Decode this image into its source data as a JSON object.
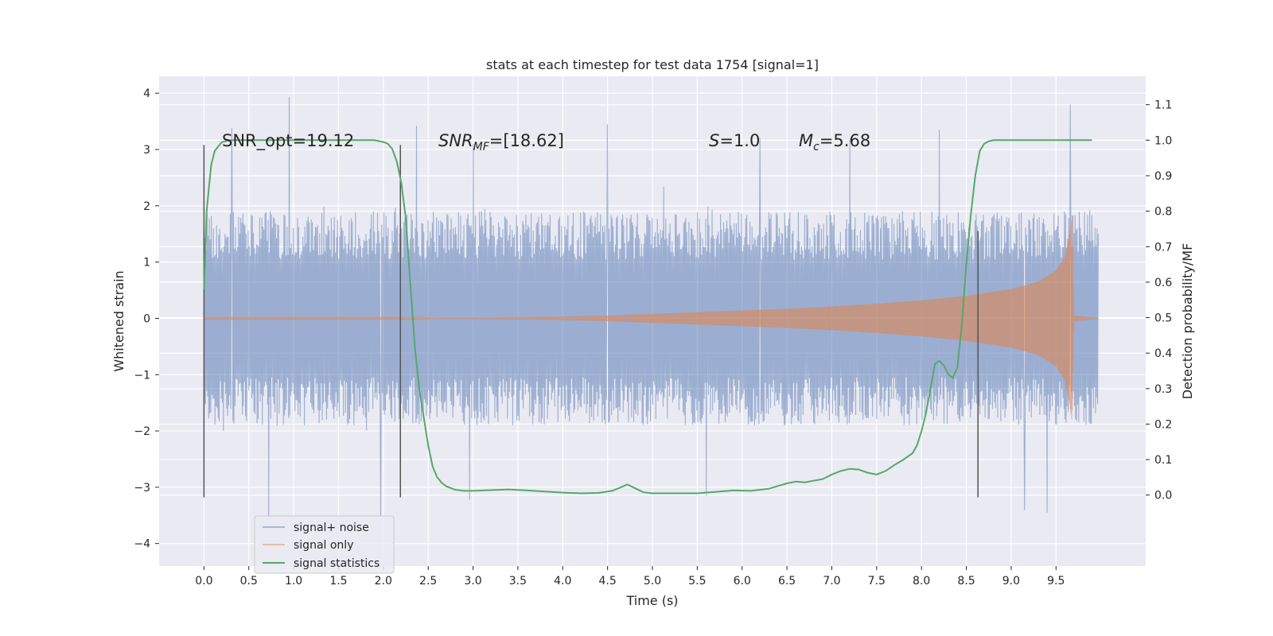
{
  "chart_data": {
    "type": "line",
    "title": "stats at each timestep for test data 1754 [signal=1]",
    "xlabel": "Time (s)",
    "ylabel": "Whitened strain",
    "y2label": "Detection probability/MF",
    "xlim": [
      -0.5,
      10.5
    ],
    "ylim": [
      -4.4,
      4.3
    ],
    "y2lim": [
      -0.2,
      1.18
    ],
    "xticks": [
      0.0,
      0.5,
      1.0,
      1.5,
      2.0,
      2.5,
      3.0,
      3.5,
      4.0,
      4.5,
      5.0,
      5.5,
      6.0,
      6.5,
      7.0,
      7.5,
      8.0,
      8.5,
      9.0,
      9.5
    ],
    "xtick_labels": [
      "0.0",
      "0.5",
      "1.0",
      "1.5",
      "2.0",
      "2.5",
      "3.0",
      "3.5",
      "4.0",
      "4.5",
      "5.0",
      "5.5",
      "6.0",
      "6.5",
      "7.0",
      "7.5",
      "8.0",
      "8.5",
      "9.0",
      "9.5"
    ],
    "yticks": [
      4,
      3,
      2,
      1,
      0,
      -1,
      -2,
      -3,
      -4
    ],
    "ytick_labels": [
      "4",
      "3",
      "2",
      "1",
      "0",
      "−1",
      "−2",
      "−3",
      "−4"
    ],
    "y2ticks": [
      1.1,
      1.0,
      0.9,
      0.8,
      0.7,
      0.6,
      0.5,
      0.4,
      0.3,
      0.2,
      0.1,
      0.0
    ],
    "y2tick_labels": [
      "1.1",
      "1.0",
      "0.9",
      "0.8",
      "0.7",
      "0.6",
      "0.5",
      "0.4",
      "0.3",
      "0.2",
      "0.1",
      "0.0"
    ],
    "grid": true,
    "legend_position": "lower-left",
    "annotations": {
      "snr_opt": "SNR_opt=19.12",
      "snr_mf_main": "SNR",
      "snr_mf_sub": "MF",
      "snr_mf_rest": "=[18.62]",
      "s_main": "S",
      "s_rest": "=1.0",
      "mc_main": "M",
      "mc_sub": "c",
      "mc_rest": "=5.68"
    },
    "vlines": [
      {
        "x": 0.0,
        "y": [
          -3.18,
          3.08
        ]
      },
      {
        "x": 2.19,
        "y": [
          -3.18,
          3.08
        ]
      },
      {
        "x": 8.63,
        "y": [
          -3.18,
          1.55
        ]
      }
    ],
    "series": [
      {
        "name": "signal+ noise",
        "color": "#4c72b0",
        "x_range": [
          0.0,
          9.97
        ],
        "envelope_typical": [
          -1.9,
          1.9
        ],
        "noise_peak_points": [
          {
            "x": 0.95,
            "y": 3.93
          },
          {
            "x": 0.31,
            "y": 3.38
          },
          {
            "x": 0.72,
            "y": -3.55
          },
          {
            "x": 2.37,
            "y": 3.42
          },
          {
            "x": 1.97,
            "y": -3.5
          },
          {
            "x": 3.0,
            "y": 3.1
          },
          {
            "x": 4.5,
            "y": 3.45
          },
          {
            "x": 2.96,
            "y": -3.22
          },
          {
            "x": 5.6,
            "y": -3.15
          },
          {
            "x": 6.2,
            "y": 3.2
          },
          {
            "x": 7.2,
            "y": 3.2
          },
          {
            "x": 8.2,
            "y": 3.35
          },
          {
            "x": 9.66,
            "y": 3.8
          },
          {
            "x": 9.4,
            "y": -3.45
          },
          {
            "x": 9.15,
            "y": -3.4
          }
        ]
      },
      {
        "name": "signal only",
        "color": "#dd8452",
        "envelope": [
          {
            "x": 0.0,
            "y": 0.01
          },
          {
            "x": 2.0,
            "y": 0.01
          },
          {
            "x": 3.0,
            "y": 0.015
          },
          {
            "x": 4.0,
            "y": 0.03
          },
          {
            "x": 4.5,
            "y": 0.05
          },
          {
            "x": 5.0,
            "y": 0.08
          },
          {
            "x": 5.5,
            "y": 0.11
          },
          {
            "x": 6.0,
            "y": 0.14
          },
          {
            "x": 6.5,
            "y": 0.17
          },
          {
            "x": 7.0,
            "y": 0.21
          },
          {
            "x": 7.5,
            "y": 0.26
          },
          {
            "x": 8.0,
            "y": 0.32
          },
          {
            "x": 8.5,
            "y": 0.4
          },
          {
            "x": 9.0,
            "y": 0.52
          },
          {
            "x": 9.3,
            "y": 0.65
          },
          {
            "x": 9.5,
            "y": 0.85
          },
          {
            "x": 9.6,
            "y": 1.1
          },
          {
            "x": 9.65,
            "y": 1.5
          },
          {
            "x": 9.68,
            "y": 1.85
          },
          {
            "x": 9.7,
            "y": 0.05
          },
          {
            "x": 9.97,
            "y": 0.01
          }
        ]
      },
      {
        "name": "signal statistics",
        "color": "#55a868",
        "axis": "right",
        "x": [
          0.0,
          0.03,
          0.08,
          0.12,
          0.2,
          0.3,
          0.5,
          1.0,
          1.5,
          1.9,
          2.0,
          2.05,
          2.1,
          2.15,
          2.2,
          2.25,
          2.3,
          2.35,
          2.4,
          2.45,
          2.5,
          2.55,
          2.6,
          2.65,
          2.7,
          2.8,
          2.9,
          3.0,
          3.2,
          3.4,
          3.6,
          3.8,
          4.0,
          4.2,
          4.4,
          4.55,
          4.65,
          4.72,
          4.8,
          4.9,
          5.0,
          5.2,
          5.5,
          5.7,
          5.9,
          6.1,
          6.3,
          6.5,
          6.6,
          6.7,
          6.9,
          7.0,
          7.1,
          7.2,
          7.3,
          7.4,
          7.5,
          7.6,
          7.7,
          7.8,
          7.9,
          7.95,
          8.0,
          8.05,
          8.1,
          8.15,
          8.2,
          8.25,
          8.3,
          8.35,
          8.4,
          8.45,
          8.5,
          8.55,
          8.6,
          8.65,
          8.7,
          8.75,
          8.8,
          8.9,
          9.0,
          9.5,
          9.9
        ],
        "values": [
          0.58,
          0.8,
          0.93,
          0.97,
          0.995,
          1.0,
          1.0,
          1.0,
          1.0,
          1.0,
          0.995,
          0.99,
          0.975,
          0.94,
          0.88,
          0.78,
          0.6,
          0.42,
          0.3,
          0.22,
          0.14,
          0.08,
          0.05,
          0.035,
          0.025,
          0.015,
          0.012,
          0.012,
          0.014,
          0.016,
          0.013,
          0.01,
          0.007,
          0.005,
          0.006,
          0.012,
          0.022,
          0.03,
          0.02,
          0.008,
          0.005,
          0.005,
          0.005,
          0.009,
          0.013,
          0.012,
          0.018,
          0.033,
          0.038,
          0.036,
          0.045,
          0.058,
          0.068,
          0.074,
          0.072,
          0.063,
          0.058,
          0.068,
          0.085,
          0.1,
          0.118,
          0.14,
          0.18,
          0.23,
          0.3,
          0.37,
          0.378,
          0.365,
          0.34,
          0.33,
          0.36,
          0.48,
          0.65,
          0.79,
          0.9,
          0.97,
          0.99,
          0.997,
          1.0,
          1.0,
          1.0,
          1.0,
          1.0
        ]
      }
    ]
  }
}
